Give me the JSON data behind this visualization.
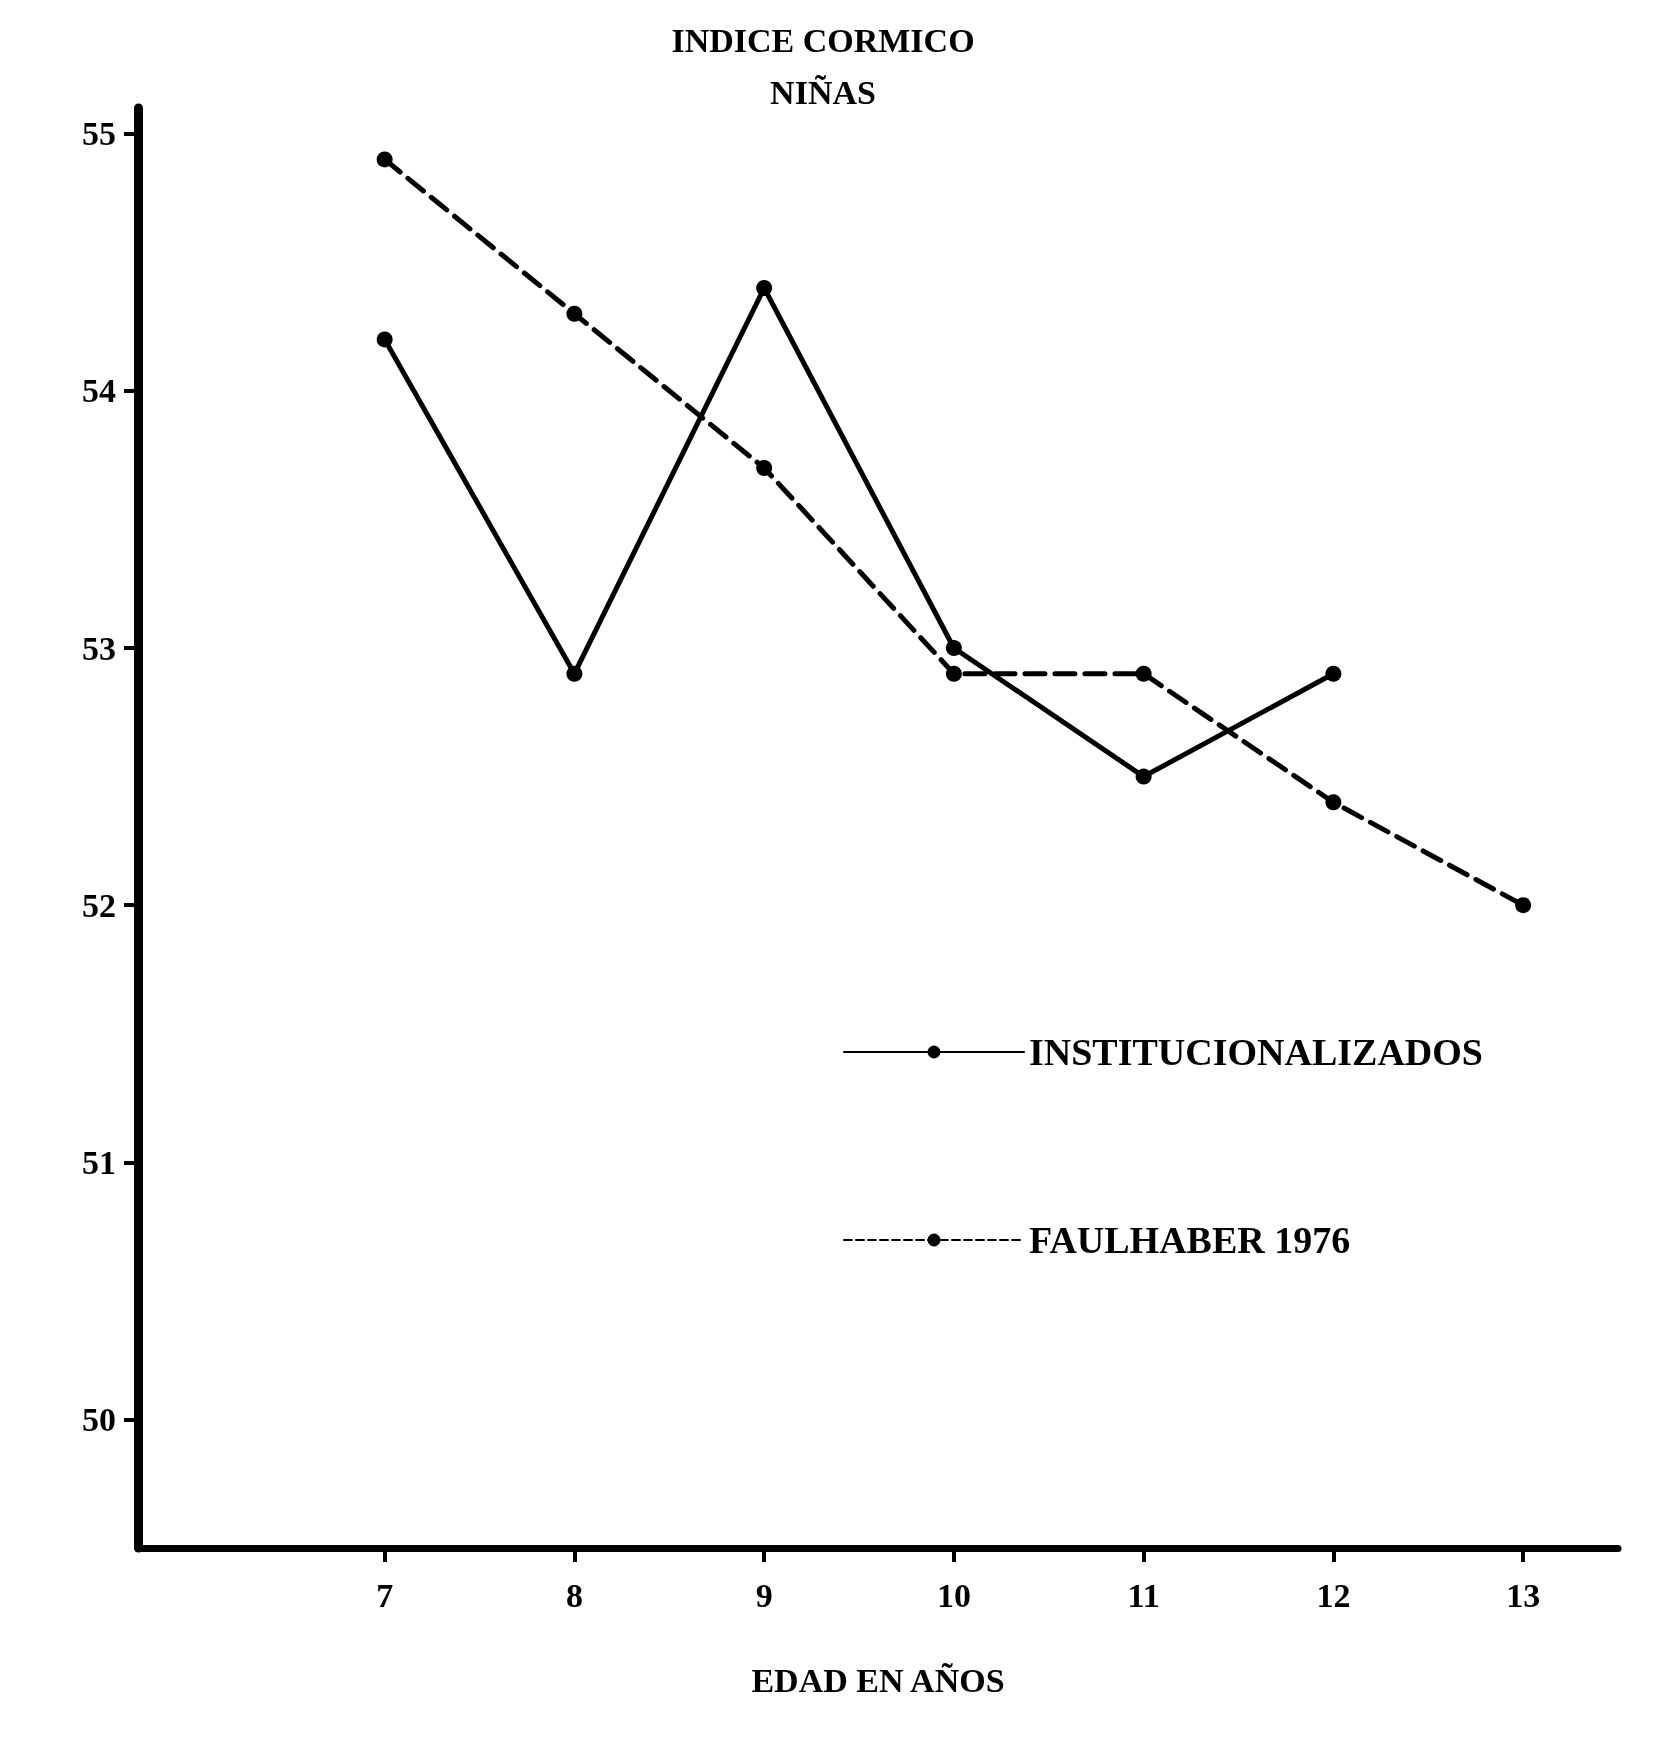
{
  "chart_data": {
    "type": "line",
    "title": "INDICE CORMICO",
    "subtitle": "NIÑAS",
    "xlabel": "EDAD EN AÑOS",
    "x": [
      7,
      8,
      9,
      10,
      11,
      12,
      13
    ],
    "series": [
      {
        "name": "INSTITUCIONALIZADOS",
        "color": "#000000",
        "line_style": "solid",
        "values": [
          54.2,
          52.9,
          54.4,
          53.0,
          52.5,
          52.9,
          null
        ]
      },
      {
        "name": "FAULHABER 1976",
        "color": "#000000",
        "line_style": "dashed",
        "values": [
          54.9,
          54.3,
          53.7,
          52.9,
          52.9,
          52.4,
          52.0
        ]
      }
    ],
    "xlim": [
      5.7,
      13.5
    ],
    "xticks": [
      7,
      8,
      9,
      10,
      11,
      12,
      13
    ],
    "ylim": [
      49.5,
      55.1
    ],
    "yticks": [
      50,
      51,
      52,
      53,
      54,
      55
    ],
    "grid": false,
    "legend": "right",
    "marker": "circle"
  }
}
